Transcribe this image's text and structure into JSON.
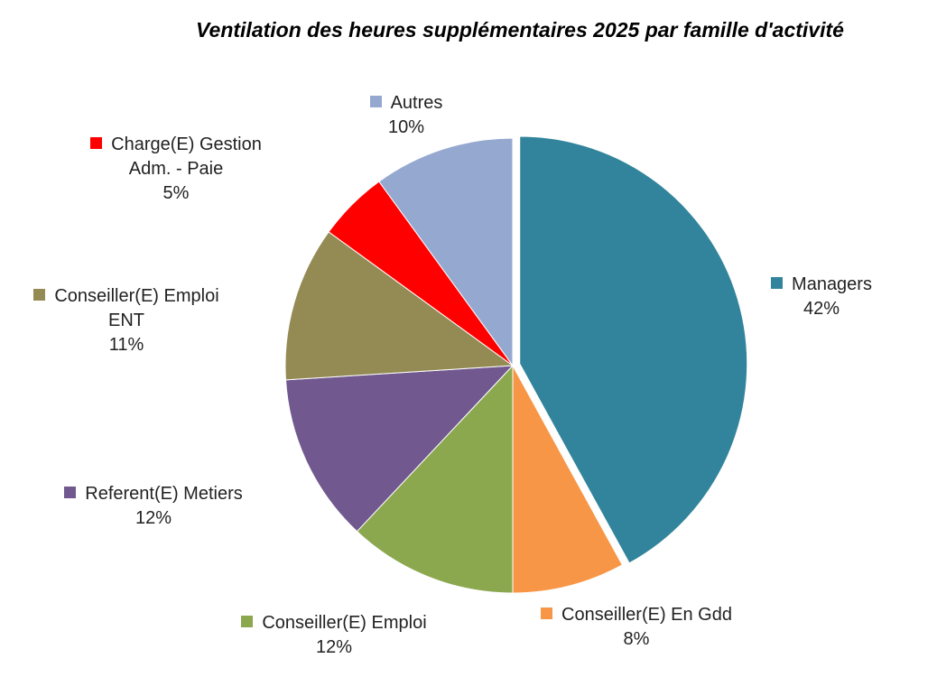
{
  "chart_data": {
    "type": "pie",
    "title": "Ventilation des heures supplémentaires 2025 par famille d'activité",
    "categories": [
      "Managers",
      "Conseiller(E) En Gdd",
      "Conseiller(E) Emploi",
      "Referent(E) Metiers",
      "Conseiller(E) Emploi ENT",
      "Charge(E) Gestion Adm. - Paie",
      "Autres"
    ],
    "values": [
      42,
      8,
      12,
      12,
      11,
      5,
      10
    ],
    "value_labels": [
      "42%",
      "8%",
      "12%",
      "12%",
      "11%",
      "5%",
      "10%"
    ],
    "colors": [
      "#31849b",
      "#f79646",
      "#8ba84f",
      "#71588f",
      "#948a54",
      "#ff0000",
      "#95a9d0"
    ]
  }
}
